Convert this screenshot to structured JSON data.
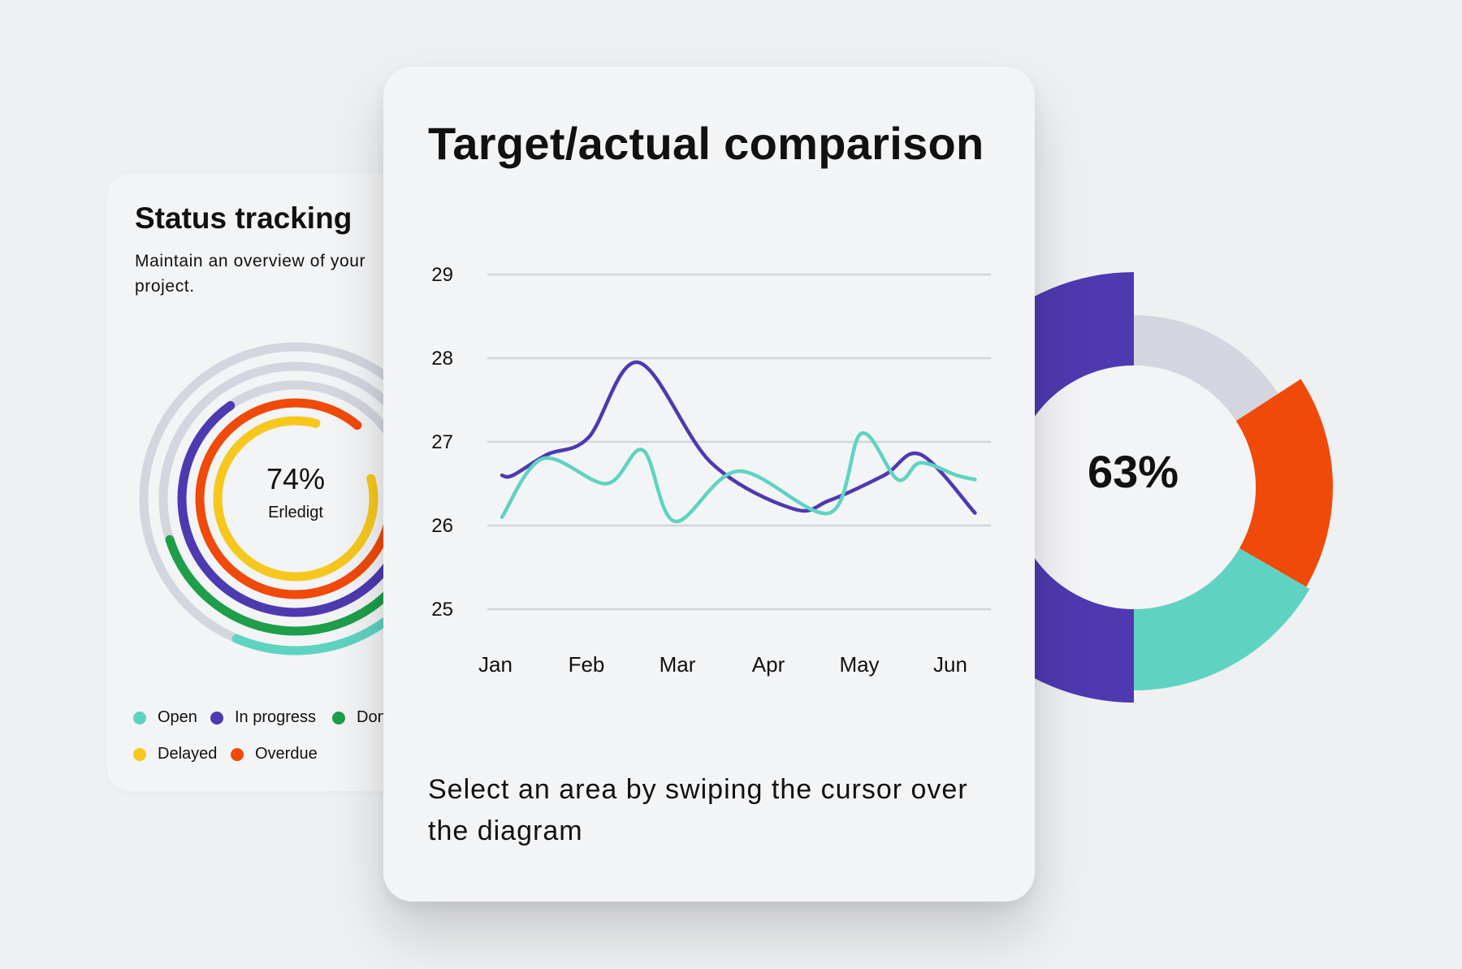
{
  "status_card": {
    "title": "Status tracking",
    "subtitle": "Maintain an overview of your project.",
    "center_value": "74%",
    "center_label": "Erledigt",
    "legend": [
      {
        "label": "Open",
        "color": "#5fd3c2"
      },
      {
        "label": "In progress",
        "color": "#4f39b0"
      },
      {
        "label": "Done",
        "color": "#1e9e4a"
      },
      {
        "label": "Delayed",
        "color": "#f6c81e"
      },
      {
        "label": "Overdue",
        "color": "#f04a0a"
      }
    ]
  },
  "main_card": {
    "title": "Target/actual comparison",
    "caption": "Select an area by swiping the cursor over the diagram"
  },
  "donut": {
    "value_label": "63%"
  },
  "chart_data": [
    {
      "type": "line",
      "title": "Target/actual comparison",
      "x": [
        "Jan",
        "Feb",
        "Mar",
        "Apr",
        "May",
        "Jun"
      ],
      "yticks": [
        25,
        26,
        27,
        28,
        29
      ],
      "ylim": [
        25,
        29
      ],
      "grid": true,
      "series": [
        {
          "color": "#4f39b0",
          "points": [
            [
              0,
              26.6
            ],
            [
              0.12,
              26.6
            ],
            [
              0.5,
              26.85
            ],
            [
              0.95,
              27.05
            ],
            [
              1.5,
              27.95
            ],
            [
              2.3,
              26.75
            ],
            [
              3.2,
              26.2
            ],
            [
              3.6,
              26.3
            ],
            [
              4.2,
              26.6
            ],
            [
              4.6,
              26.85
            ],
            [
              5.2,
              26.15
            ]
          ]
        },
        {
          "color": "#5fd3c2",
          "points": [
            [
              0,
              26.1
            ],
            [
              0.45,
              26.8
            ],
            [
              1.15,
              26.5
            ],
            [
              1.55,
              26.9
            ],
            [
              1.9,
              26.05
            ],
            [
              2.6,
              26.65
            ],
            [
              3.6,
              26.15
            ],
            [
              3.95,
              27.1
            ],
            [
              4.35,
              26.55
            ],
            [
              4.6,
              26.75
            ],
            [
              5.0,
              26.6
            ],
            [
              5.2,
              26.55
            ]
          ]
        }
      ]
    },
    {
      "type": "pie",
      "title": "",
      "center_label": "63%",
      "slices": [
        {
          "value": 63,
          "color": "#4f39b0"
        },
        {
          "value": 11,
          "color": "#d3d6de"
        },
        {
          "value": 12,
          "color": "#f04a0a"
        },
        {
          "value": 14,
          "color": "#5fd3c2"
        }
      ]
    },
    {
      "type": "pie",
      "title": "",
      "center_label": "74%",
      "rings": [
        {
          "label": "Open",
          "color": "#5fd3c2"
        },
        {
          "label": "Done",
          "color": "#1e9e4a"
        },
        {
          "label": "In progress",
          "color": "#4f39b0"
        },
        {
          "label": "Overdue",
          "color": "#f04a0a"
        },
        {
          "label": "Delayed",
          "color": "#f6c81e"
        }
      ]
    }
  ]
}
